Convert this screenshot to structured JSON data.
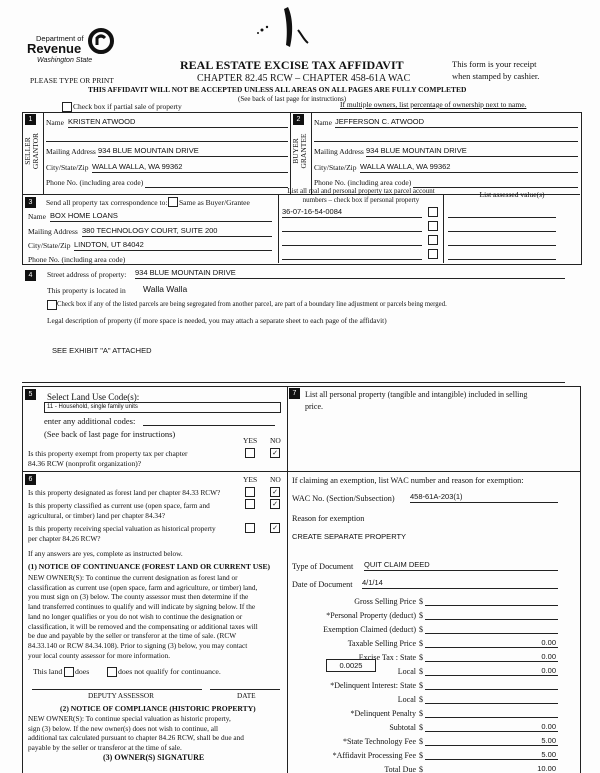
{
  "header": {
    "logo": {
      "line1": "Department of",
      "line2": "Revenue",
      "line3": "Washington State"
    },
    "title": "REAL ESTATE EXCISE TAX AFFIDAVIT",
    "subtitle": "CHAPTER 82.45 RCW – CHAPTER 458-61A WAC",
    "receipt_line1": "This form is your receipt",
    "receipt_line2": "when stamped by cashier.",
    "please_type": "PLEASE TYPE OR PRINT",
    "warning": "THIS AFFIDAVIT WILL NOT BE ACCEPTED UNLESS ALL AREAS ON ALL PAGES ARE FULLY COMPLETED",
    "instructions": "(See back of last page for instructions)",
    "partial_sale_label": "Check box if partial sale of property",
    "multiple_owners": "If multiple owners, list percentage of ownership next to name."
  },
  "seller": {
    "number": "1",
    "side_label_1": "SELLER",
    "side_label_2": "GRANTOR",
    "name_label": "Name",
    "name": "KRISTEN ATWOOD",
    "mailing_label": "Mailing Address",
    "mailing": "934 BLUE MOUNTAIN DRIVE",
    "city_label": "City/State/Zip",
    "city": "WALLA WALLA, WA  99362",
    "phone_label": "Phone No. (including area code)",
    "phone": ""
  },
  "buyer": {
    "number": "2",
    "side_label_1": "BUYER",
    "side_label_2": "GRANTEE",
    "name_label": "Name",
    "name": "JEFFERSON C. ATWOOD",
    "mailing_label": "Mailing Address",
    "mailing": "934 BLUE MOUNTAIN DRIVE",
    "city_label": "City/State/Zip",
    "city": "WALLA WALLA, WA  99362",
    "phone_label": "Phone No. (including area code)",
    "phone": ""
  },
  "correspondence": {
    "number": "3",
    "send_label": "Send all property tax correspondence to:",
    "same_label": "Same as Buyer/Grantee",
    "name_label": "Name",
    "name": "BOX HOME LOANS",
    "mailing_label": "Mailing Address",
    "mailing": "380 TECHNOLOGY COURT, SUITE 200",
    "city_label": "City/State/Zip",
    "city": "LINDTON, UT  84042",
    "phone_label": "Phone No. (including area code)",
    "phone": ""
  },
  "parcels": {
    "header_1": "List all real and personal property tax parcel account",
    "header_2": "numbers – check box if personal property",
    "assessed_header": "List assessed value(s)",
    "rows": [
      {
        "number": "36-07-16-54-0084",
        "personal": false,
        "value": ""
      },
      {
        "number": "",
        "personal": false,
        "value": ""
      },
      {
        "number": "",
        "personal": false,
        "value": ""
      },
      {
        "number": "",
        "personal": false,
        "value": ""
      }
    ]
  },
  "property": {
    "number": "4",
    "street_label": "Street address of property:",
    "street": "934 BLUE MOUNTAIN DRIVE",
    "located_label": "This property is located in",
    "located": "Walla Walla",
    "segregated_label": "Check box if any of the listed parcels are being segregated from another parcel, are part of a boundary line adjustment or parcels being merged.",
    "legal_label": "Legal description of property (if more space is needed, you may attach a separate sheet to each page of the affidavit)",
    "legal": "SEE EXHIBIT \"A\" ATTACHED"
  },
  "land_use": {
    "number": "5",
    "select_label": "Select Land Use Code(s):",
    "code": "11 - Household, single family units",
    "additional_label": "enter any additional codes:",
    "see_back": "(See back of last page for instructions)",
    "yes": "YES",
    "no": "NO",
    "exempt_q1": "Is this property exempt from property tax per chapter",
    "exempt_q2": "84.36 RCW (nonprofit organization)?",
    "exempt_answer": "NO"
  },
  "designation": {
    "number": "6",
    "yes": "YES",
    "no": "NO",
    "questions": [
      {
        "line1": "Is this property designated as forest land per chapter 84.33 RCW?",
        "line2": "",
        "answer": "NO"
      },
      {
        "line1": "Is this property classified as current use (open space, farm and",
        "line2": "agricultural, or timber) land per chapter 84.34?",
        "answer": "NO"
      },
      {
        "line1": "Is this property receiving special valuation as historical property",
        "line2": "per chapter 84.26 RCW?",
        "answer": "NO"
      }
    ],
    "if_yes": "If any answers are yes, complete as instructed below.",
    "continuance_title": "(1) NOTICE OF CONTINUANCE  (FOREST LAND OR CURRENT USE)",
    "continuance_lines": [
      "NEW OWNER(S): To continue the current designation as forest land or",
      "classification as current use (open space, farm and agriculture, or timber) land,",
      "you must sign on (3) below. The county assessor must then determine if the",
      "land transferred continues to qualify and will indicate by signing below. If the",
      "land no longer qualifies or you do not wish to continue the designation or",
      "classification, it will be removed and the compensating or additional taxes will",
      "be due and payable by the seller or transferor at the time of sale. (RCW",
      "84.33.140 or RCW 84.34.108). Prior to signing (3) below, you may contact",
      "your local county assessor for more information."
    ],
    "this_land": "This land",
    "does": "does",
    "does_not": "does not qualify for continuance.",
    "deputy_assessor": "DEPUTY ASSESSOR",
    "date": "DATE",
    "compliance_title": "(2) NOTICE OF COMPLIANCE (HISTORIC PROPERTY)",
    "compliance_lines": [
      "NEW OWNER(S): To continue special valuation as historic property,",
      "sign (3) below. If the new owner(s) does not wish to continue, all",
      "additional tax calculated pursuant to chapter 84.26 RCW, shall be due and",
      "payable by the seller or transferor at the time of sale."
    ],
    "signature_title": "(3)  OWNER(S) SIGNATURE"
  },
  "personal_property": {
    "number": "7",
    "label_1": "List all  personal property (tangible and intangible) included in selling",
    "label_2": "price."
  },
  "exemption": {
    "claim_label": "If claiming an exemption, list WAC number and reason for exemption:",
    "wac_label": "WAC No. (Section/Subsection)",
    "wac": "458-61A-203(1)",
    "reason_label": "Reason for exemption",
    "reason": "CREATE SEPARATE PROPERTY",
    "doc_type_label": "Type of Document",
    "doc_type": "QUIT CLAIM DEED",
    "doc_date_label": "Date of Document",
    "doc_date": "4/1/14"
  },
  "fees": {
    "currency": "$",
    "local_rate": "0.0025",
    "rows": [
      {
        "label": "Gross Selling Price",
        "value": ""
      },
      {
        "label": "*Personal Property (deduct)",
        "value": ""
      },
      {
        "label": "Exemption Claimed (deduct)",
        "value": ""
      },
      {
        "label": "Taxable Selling Price",
        "value": "0.00"
      },
      {
        "label": "Excise Tax : State",
        "value": "0.00"
      },
      {
        "label": "Local",
        "value": "0.00"
      },
      {
        "label": "*Delinquent Interest: State",
        "value": ""
      },
      {
        "label": "Local",
        "value": ""
      },
      {
        "label": "*Delinquent Penalty",
        "value": ""
      },
      {
        "label": "Subtotal",
        "value": "0.00"
      },
      {
        "label": "*State Technology Fee",
        "value": "5.00"
      },
      {
        "label": "*Affidavit Processing Fee",
        "value": "5.00"
      },
      {
        "label": "Total Due",
        "value": "10.00"
      }
    ]
  }
}
